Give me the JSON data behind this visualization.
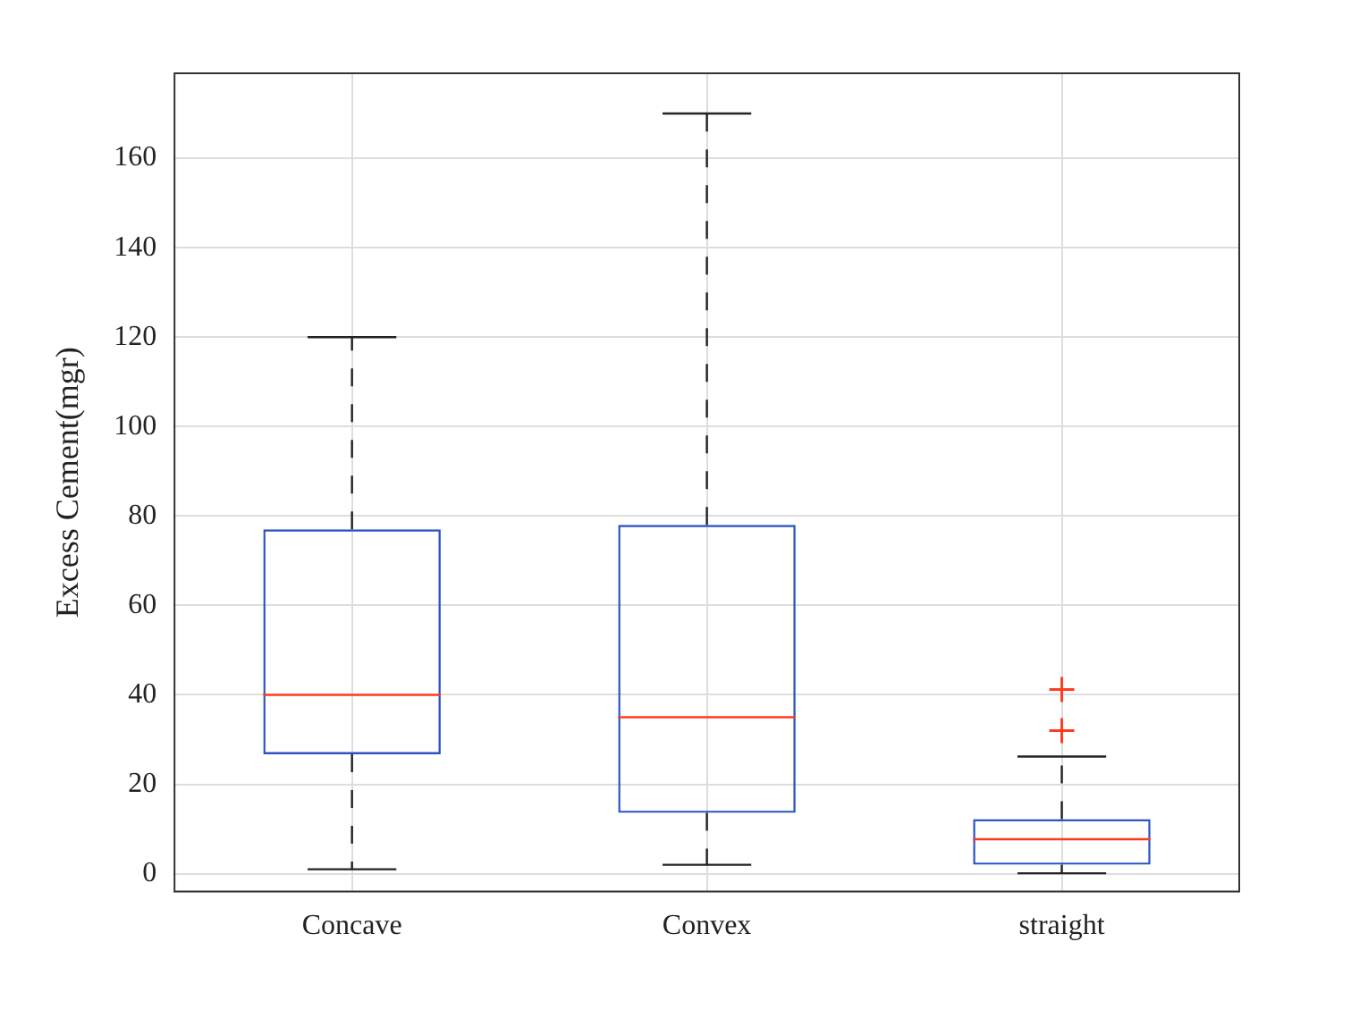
{
  "chart_data": {
    "type": "box",
    "ylabel": "Excess Cement(mgr)",
    "categories": [
      "Concave",
      "Convex",
      "straight"
    ],
    "series": [
      {
        "color": "#2b54c0",
        "boxes": [
          {
            "low": 1,
            "q1": 26.7,
            "median": 40,
            "q3": 77,
            "high": 120
          },
          {
            "low": 2,
            "q1": 13.6,
            "median": 35,
            "q3": 78,
            "high": 170
          },
          {
            "low": 0.1,
            "q1": 2,
            "median": 7.7,
            "q3": 12.2,
            "high": 26.2,
            "outliers": [
              32,
              41.2
            ]
          }
        ]
      }
    ],
    "ylim": [
      -4,
      179
    ],
    "yticks": [
      0,
      20,
      40,
      60,
      80,
      100,
      120,
      140,
      160
    ],
    "grid": true,
    "legend": false,
    "marker": "cross"
  }
}
